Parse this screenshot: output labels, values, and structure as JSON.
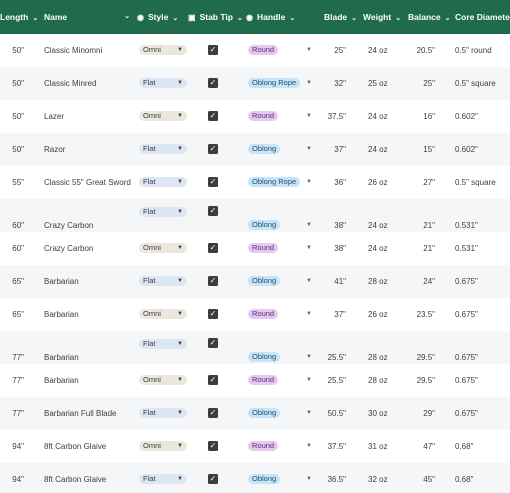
{
  "columns": {
    "length": "Length",
    "name": "Name",
    "style": "Style",
    "stab_tip": "Stab Tip",
    "handle": "Handle",
    "blade": "Blade",
    "weight": "Weight",
    "balance": "Balance",
    "core_diameter": "Core Diameter"
  },
  "icons": {
    "sort_caret": "chevron-down-icon",
    "style_column": "eye-icon",
    "stab_tip_column": "checkbox-icon",
    "handle_column": "eye-icon",
    "dropdown": "triangle-down-icon",
    "check": "checkmark-icon"
  },
  "colors": {
    "header_bg": "#1f6b4c",
    "chip_omni": "#ebe7dc",
    "chip_flat": "#dde6f3",
    "chip_round": "#e4caf1",
    "chip_oblong": "#c6e3f7",
    "checkbox": "#3c3c3c"
  },
  "rows": [
    {
      "length": "50\"",
      "name": "Classic Minomni",
      "style": "Omni",
      "stab_tip": true,
      "handle": "Round",
      "blade": "25\"",
      "weight": "24 oz",
      "balance": "20.5\"",
      "core_diameter": "0.5\" round"
    },
    {
      "length": "50\"",
      "name": "Classic Minred",
      "style": "Flat",
      "stab_tip": true,
      "handle": "Oblong Rope",
      "blade": "32\"",
      "weight": "25 oz",
      "balance": "25\"",
      "core_diameter": "0.5\" square"
    },
    {
      "length": "50\"",
      "name": "Lazer",
      "style": "Omni",
      "stab_tip": true,
      "handle": "Round",
      "blade": "37.5\"",
      "weight": "24 oz",
      "balance": "16\"",
      "core_diameter": "0.602\""
    },
    {
      "length": "50\"",
      "name": "Razor",
      "style": "Flat",
      "stab_tip": true,
      "handle": "Oblong",
      "blade": "37\"",
      "weight": "24 oz",
      "balance": "15\"",
      "core_diameter": "0.602\""
    },
    {
      "length": "55\"",
      "name": "Classic 55\" Great Sword",
      "style": "Flat",
      "stab_tip": true,
      "handle": "Oblong Rope",
      "blade": "36\"",
      "weight": "26 oz",
      "balance": "27\"",
      "core_diameter": "0.5\" square"
    },
    {
      "length": "60\"",
      "name": "Crazy Carbon",
      "style": "Flat",
      "stab_tip": true,
      "handle": "Oblong",
      "blade": "38\"",
      "weight": "24 oz",
      "balance": "21\"",
      "core_diameter": "0.531\""
    },
    {
      "length": "60\"",
      "name": "Crazy Carbon",
      "style": "Omni",
      "stab_tip": true,
      "handle": "Round",
      "blade": "38\"",
      "weight": "24 oz",
      "balance": "21\"",
      "core_diameter": "0.531\""
    },
    {
      "length": "65\"",
      "name": "Barbarian",
      "style": "Flat",
      "stab_tip": true,
      "handle": "Oblong",
      "blade": "41\"",
      "weight": "28 oz",
      "balance": "24\"",
      "core_diameter": "0.675\""
    },
    {
      "length": "65\"",
      "name": "Barbarian",
      "style": "Omni",
      "stab_tip": true,
      "handle": "Round",
      "blade": "37\"",
      "weight": "26 oz",
      "balance": "23.5\"",
      "core_diameter": "0.675\""
    },
    {
      "length": "77\"",
      "name": "Barbarian",
      "style": "Flat",
      "stab_tip": true,
      "handle": "Oblong",
      "blade": "25.5\"",
      "weight": "28 oz",
      "balance": "29.5\"",
      "core_diameter": "0.675\""
    },
    {
      "length": "77\"",
      "name": "Barbarian",
      "style": "Omni",
      "stab_tip": true,
      "handle": "Round",
      "blade": "25.5\"",
      "weight": "28 oz",
      "balance": "29.5\"",
      "core_diameter": "0.675\""
    },
    {
      "length": "77\"",
      "name": "Barbarian Full Blade",
      "style": "Flat",
      "stab_tip": true,
      "handle": "Oblong",
      "blade": "50.5\"",
      "weight": "30 oz",
      "balance": "29\"",
      "core_diameter": "0.675\""
    },
    {
      "length": "94\"",
      "name": "8ft Carbon Glaive",
      "style": "Omni",
      "stab_tip": true,
      "handle": "Round",
      "blade": "37.5\"",
      "weight": "31 oz",
      "balance": "47\"",
      "core_diameter": "0.68\""
    },
    {
      "length": "94\"",
      "name": "8ft Carbon Glaive",
      "style": "Flat",
      "stab_tip": true,
      "handle": "Oblong",
      "blade": "36.5\"",
      "weight": "32 oz",
      "balance": "45\"",
      "core_diameter": "0.68\""
    }
  ]
}
